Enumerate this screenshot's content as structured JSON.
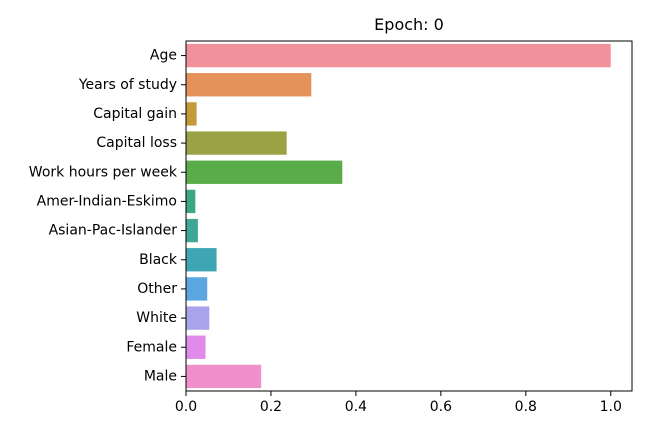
{
  "chart_data": {
    "type": "bar",
    "orientation": "horizontal",
    "title": "Epoch: 0",
    "xlabel": "",
    "ylabel": "",
    "xlim": [
      0,
      1.05
    ],
    "xticks": [
      "0.0",
      "0.2",
      "0.4",
      "0.6",
      "0.8",
      "1.0"
    ],
    "grid": false,
    "categories": [
      "Age",
      "Years of study",
      "Capital gain",
      "Capital loss",
      "Work hours per week",
      "Amer-Indian-Eskimo",
      "Asian-Pac-Islander",
      "Black",
      "Other",
      "White",
      "Female",
      "Male"
    ],
    "values": [
      1.0,
      0.295,
      0.025,
      0.237,
      0.368,
      0.022,
      0.028,
      0.072,
      0.05,
      0.055,
      0.046,
      0.177
    ],
    "colors": [
      "#f0919c",
      "#e5915a",
      "#c49a3a",
      "#9aa245",
      "#5aab4a",
      "#3ba880",
      "#3fa895",
      "#3ea6b2",
      "#5aa6e0",
      "#a9a3ec",
      "#e08bea",
      "#ef8fcb"
    ]
  }
}
